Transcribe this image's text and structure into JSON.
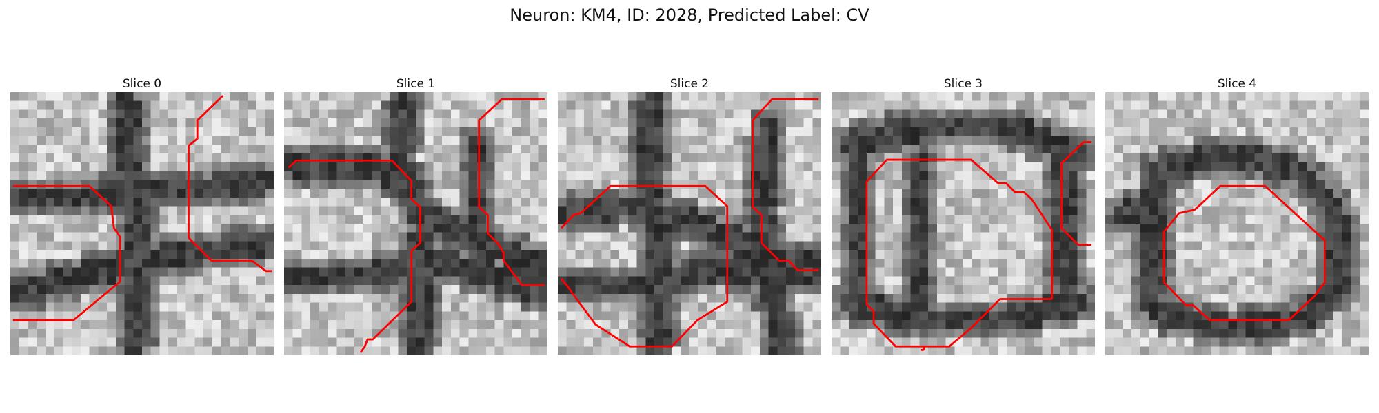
{
  "figure": {
    "title": "Neuron: KM4, ID: 2028, Predicted Label: CV"
  },
  "slices": [
    {
      "title": "Slice 0"
    },
    {
      "title": "Slice 1"
    },
    {
      "title": "Slice 2"
    },
    {
      "title": "Slice 3"
    },
    {
      "title": "Slice 4"
    }
  ],
  "colors": {
    "contour": "#ff0000",
    "background": "#ffffff"
  }
}
